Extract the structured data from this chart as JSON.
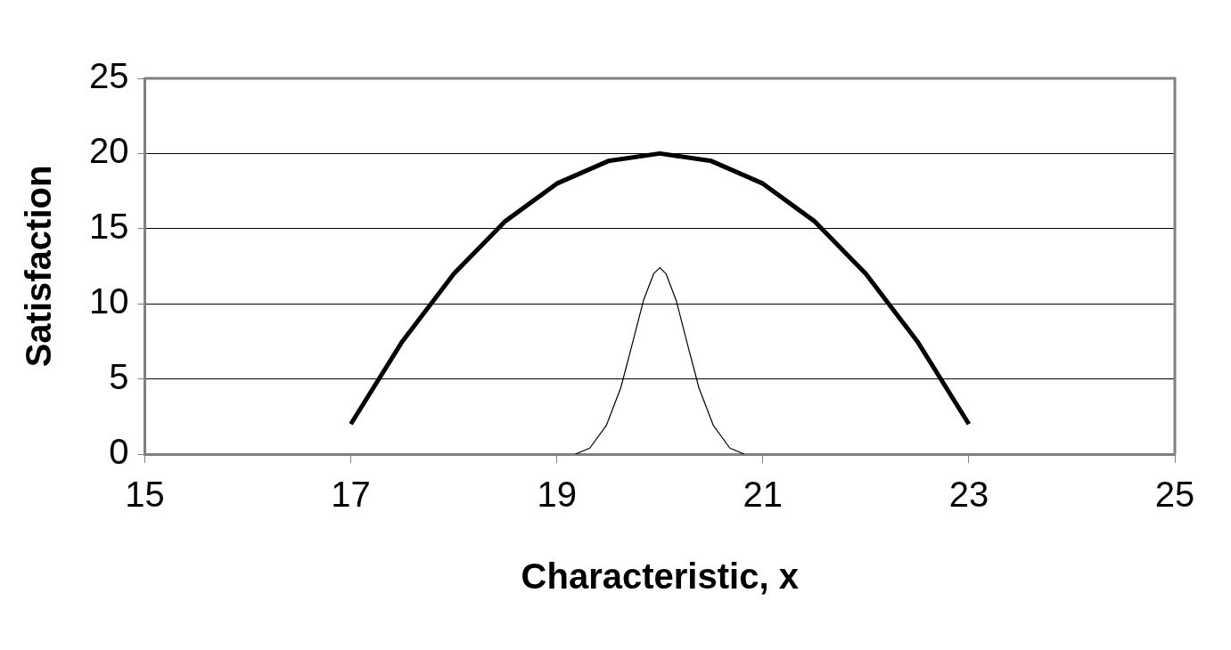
{
  "chart_data": {
    "type": "line",
    "xlabel": "Characteristic, x",
    "ylabel": "Satisfaction",
    "xlim": [
      15,
      25
    ],
    "xticks": [
      15,
      17,
      19,
      21,
      23,
      25
    ],
    "ylim": [
      0,
      25
    ],
    "yticks": [
      0,
      5,
      10,
      15,
      20,
      25
    ],
    "grid": "y",
    "legend": false,
    "marker": "none",
    "line_style": "solid",
    "series": [
      {
        "color": "#000000",
        "x": [
          17,
          17.5,
          18,
          18.5,
          19,
          19.5,
          20,
          20.5,
          21,
          21.5,
          22,
          22.5,
          23
        ],
        "values": [
          2,
          7.5,
          12,
          15.5,
          18,
          19.5,
          20,
          19.5,
          18,
          15.5,
          12,
          7.5,
          2
        ]
      },
      {
        "color": "#000000",
        "x": [
          19.18,
          19.32,
          19.48,
          19.62,
          19.72,
          19.84,
          19.94,
          20,
          20.06,
          20.16,
          20.28,
          20.38,
          20.52,
          20.68,
          20.82
        ],
        "values": [
          0,
          0.4,
          1.9,
          4.4,
          7,
          10.2,
          12,
          12.4,
          12,
          10.2,
          7,
          4.4,
          1.9,
          0.4,
          0
        ]
      }
    ]
  }
}
